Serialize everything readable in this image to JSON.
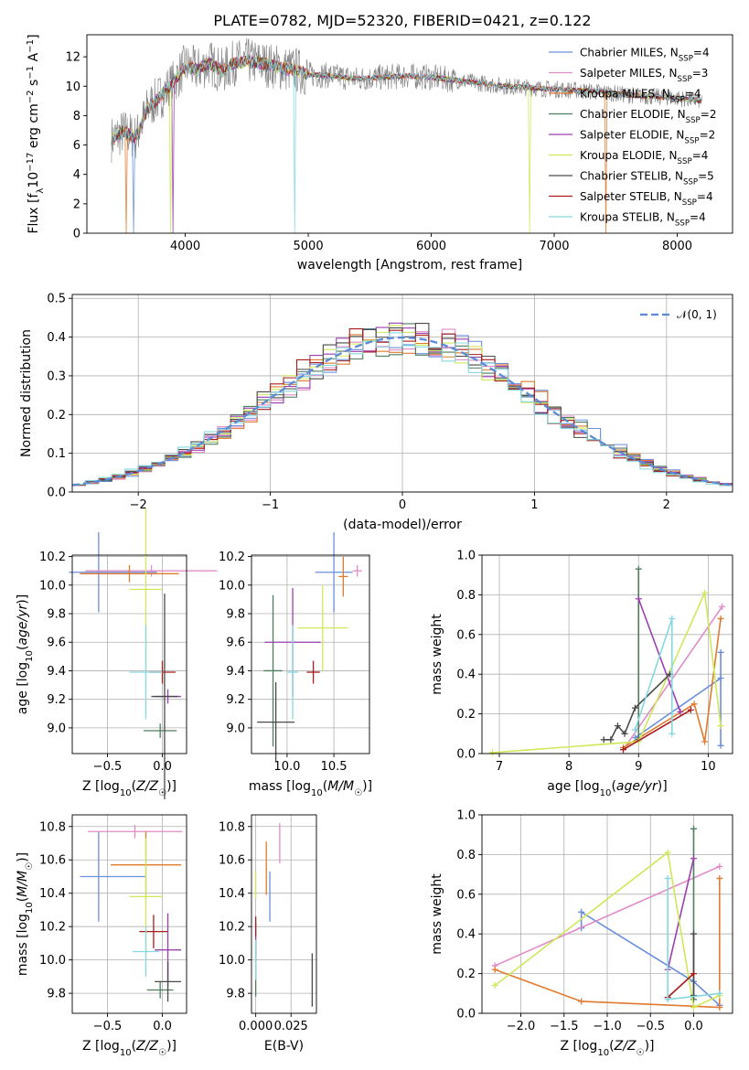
{
  "figure_title": "PLATE=0782, MJD=52320, FIBERID=0421, z=0.122",
  "colors": {
    "cm": "#6a8fdc",
    "sm": "#e08bc8",
    "km": "#e07a2e",
    "ce": "#4e7d5e",
    "se": "#9b3fb0",
    "ke": "#cfe85a",
    "cs": "#4a4a4a",
    "ss": "#a81c1c",
    "ks": "#86d8e0"
  },
  "chart_data": [
    {
      "type": "line",
      "title": "PLATE=0782, MJD=52320, FIBERID=0421, z=0.122",
      "xlabel": "wavelength [Angstrom, rest frame]",
      "ylabel": "Flux [f_λ 10^-17 erg cm^-2 s^-1 A^-1]",
      "xlim": [
        3200,
        8450
      ],
      "ylim": [
        0,
        13.5
      ],
      "xticks": [
        4000,
        5000,
        6000,
        7000,
        8000
      ],
      "yticks": [
        0,
        2,
        4,
        6,
        8,
        10,
        12
      ],
      "grid": false,
      "legend_position": "upper right",
      "data_spectrum": {
        "name": "data",
        "color": "#7f7f7f",
        "x": [
          3400,
          3500,
          3600,
          3700,
          3800,
          3900,
          4000,
          4100,
          4200,
          4300,
          4400,
          4500,
          4600,
          4700,
          4800,
          4900,
          5000,
          5200,
          5400,
          5600,
          5800,
          6000,
          6200,
          6400,
          6600,
          6800,
          7000,
          7200,
          7400,
          7600,
          7800,
          8000,
          8200
        ],
        "y": [
          6.4,
          6.9,
          6.5,
          8.6,
          9.3,
          10.2,
          11.4,
          11.1,
          11.6,
          11.0,
          11.6,
          11.7,
          11.6,
          11.4,
          11.2,
          11.1,
          10.8,
          10.7,
          10.5,
          10.6,
          10.7,
          10.6,
          10.4,
          10.2,
          10.0,
          9.9,
          9.8,
          9.7,
          9.6,
          9.4,
          9.3,
          9.2,
          9.0
        ]
      },
      "models": [
        {
          "name": "Chabrier MILES",
          "n_ssp": "4",
          "color_key": "cm",
          "drop_at": [
            3580
          ]
        },
        {
          "name": "Salpeter MILES",
          "n_ssp": "3",
          "color_key": "sm",
          "drop_at": []
        },
        {
          "name": "Kroupa MILES",
          "n_ssp": "4",
          "color_key": "km",
          "drop_at": [
            3520,
            7420
          ]
        },
        {
          "name": "Chabrier ELODIE",
          "n_ssp": "2",
          "color_key": "ce",
          "drop_at": []
        },
        {
          "name": "Salpeter ELODIE",
          "n_ssp": "2",
          "color_key": "se",
          "drop_at": [
            3900
          ]
        },
        {
          "name": "Kroupa ELODIE",
          "n_ssp": "4",
          "color_key": "ke",
          "drop_at": [
            3880,
            6800
          ]
        },
        {
          "name": "Chabrier STELIB",
          "n_ssp": "5",
          "color_key": "cs",
          "drop_at": []
        },
        {
          "name": "Salpeter STELIB",
          "n_ssp": "4",
          "color_key": "ss",
          "drop_at": []
        },
        {
          "name": "Kroupa STELIB",
          "n_ssp": "4",
          "color_key": "ks",
          "drop_at": [
            4890
          ]
        }
      ]
    },
    {
      "type": "step",
      "xlabel": "(data-model)/error",
      "ylabel": "Normed distribution",
      "xlim": [
        -2.5,
        2.5
      ],
      "ylim": [
        0,
        0.51
      ],
      "xticks": [
        -2,
        -1,
        0,
        1,
        2
      ],
      "yticks": [
        0.0,
        0.1,
        0.2,
        0.3,
        0.4,
        0.5
      ],
      "grid": true,
      "legend_position": "upper right",
      "legend_label": "𝒩(0, 1)",
      "bin_width": 0.1
    },
    {
      "type": "scatter",
      "xlabel": "Z [log10(Z/Z☉)]",
      "ylabel": "age  [log10(age/yr)]",
      "xlim": [
        -0.82,
        0.22
      ],
      "ylim": [
        8.82,
        10.21
      ],
      "xticks": [
        -0.5,
        0.0
      ],
      "yticks": [
        9.0,
        9.2,
        9.4,
        9.6,
        9.8,
        10.0,
        10.2
      ],
      "grid": true,
      "error_bars": [
        {
          "k": "cm",
          "x": -0.45,
          "xe": 0.4,
          "y": 10.09,
          "ye": 0.28,
          "xcap": -0.58
        },
        {
          "k": "sm",
          "x": -0.1,
          "xe": 0.6,
          "y": 10.1,
          "ye": 0.04
        },
        {
          "k": "km",
          "x": -0.3,
          "xe": 0.45,
          "y": 10.08,
          "ye": 0.06
        },
        {
          "k": "ce",
          "x": -0.02,
          "xe": 0.15,
          "y": 8.98,
          "ye": 0.05
        },
        {
          "k": "se",
          "x": 0.05,
          "xe": 0.12,
          "y": 9.22,
          "ye": 0.05
        },
        {
          "k": "ke",
          "x": -0.15,
          "xe": 0.15,
          "y": 9.97,
          "ye": 0.57
        },
        {
          "k": "cs",
          "x": 0.02,
          "xe": 0.12,
          "y": 9.22,
          "ye": 0.72
        },
        {
          "k": "ss",
          "x": 0.0,
          "xe": 0.12,
          "y": 9.39,
          "ye": 0.08
        },
        {
          "k": "ks",
          "x": -0.15,
          "xe": 0.15,
          "y": 9.39,
          "ye": 0.33
        }
      ]
    },
    {
      "type": "scatter",
      "xlabel": "mass [log10(M/M☉)]",
      "ylabel": "",
      "xlim": [
        9.62,
        10.88
      ],
      "ylim": [
        8.82,
        10.21
      ],
      "xticks": [
        10.0,
        10.5
      ],
      "yticks": [
        9.0,
        9.2,
        9.4,
        9.6,
        9.8,
        10.0,
        10.2
      ],
      "grid": true,
      "error_bars": [
        {
          "k": "cm",
          "x": 10.5,
          "xe": 0.2,
          "y": 10.09,
          "ye": 0.28
        },
        {
          "k": "sm",
          "x": 10.75,
          "xe": 0.05,
          "y": 10.1,
          "ye": 0.04
        },
        {
          "k": "km",
          "x": 10.6,
          "xe": 0.05,
          "y": 10.06,
          "ye": 0.14
        },
        {
          "k": "ce",
          "x": 9.85,
          "xe": 0.1,
          "y": 9.4,
          "ye": 0.53
        },
        {
          "k": "se",
          "x": 10.06,
          "xe": 0.3,
          "y": 9.6,
          "ye": 0.38
        },
        {
          "k": "ke",
          "x": 10.38,
          "xe": 0.27,
          "y": 9.7,
          "ye": 0.3
        },
        {
          "k": "cs",
          "x": 9.88,
          "xe": 0.2,
          "y": 9.04,
          "ye": 0.28
        },
        {
          "k": "ss",
          "x": 10.28,
          "xe": 0.07,
          "y": 9.39,
          "ye": 0.08
        },
        {
          "k": "ks",
          "x": 10.06,
          "xe": 0.06,
          "y": 9.39,
          "ye": 0.33
        }
      ]
    },
    {
      "type": "line",
      "xlabel": "age  [log10(age/yr)]",
      "ylabel": "mass weight",
      "xlim": [
        6.75,
        10.35
      ],
      "ylim": [
        0.0,
        1.0
      ],
      "xticks": [
        7,
        8,
        9,
        10
      ],
      "yticks": [
        0.0,
        0.2,
        0.4,
        0.6,
        0.8,
        1.0
      ],
      "grid": true,
      "series": [
        {
          "k": "cm",
          "x": [
            8.95,
            10.18,
            10.18,
            10.18
          ],
          "y": [
            0.08,
            0.38,
            0.51,
            0.04
          ]
        },
        {
          "k": "sm",
          "x": [
            8.78,
            10.2
          ],
          "y": [
            0.02,
            0.74
          ]
        },
        {
          "k": "km",
          "x": [
            8.78,
            9.8,
            9.95,
            10.18
          ],
          "y": [
            0.03,
            0.25,
            0.06,
            0.68
          ]
        },
        {
          "k": "ce",
          "x": [
            9.0,
            9.0
          ],
          "y": [
            0.07,
            0.93
          ]
        },
        {
          "k": "se",
          "x": [
            9.0,
            9.6
          ],
          "y": [
            0.78,
            0.21
          ]
        },
        {
          "k": "ke",
          "x": [
            6.9,
            9.0,
            9.95,
            10.18
          ],
          "y": [
            0.005,
            0.06,
            0.81,
            0.14
          ]
        },
        {
          "k": "cs",
          "x": [
            8.5,
            8.6,
            8.7,
            8.8,
            8.95,
            9.45
          ],
          "y": [
            0.07,
            0.07,
            0.14,
            0.1,
            0.23,
            0.4
          ]
        },
        {
          "k": "ss",
          "x": [
            8.78,
            9.75
          ],
          "y": [
            0.02,
            0.22
          ]
        },
        {
          "k": "ks",
          "x": [
            8.95,
            9.48,
            9.48
          ],
          "y": [
            0.12,
            0.68,
            0.1
          ]
        }
      ]
    },
    {
      "type": "scatter",
      "xlabel": "Z [log10(Z/Z☉)]",
      "ylabel": "mass [log10(M/M☉)]",
      "xlim": [
        -0.82,
        0.22
      ],
      "ylim": [
        9.68,
        10.87
      ],
      "xticks": [
        -0.5,
        0.0
      ],
      "yticks": [
        9.8,
        10.0,
        10.2,
        10.4,
        10.6,
        10.8
      ],
      "grid": true,
      "error_bars": [
        {
          "k": "cm",
          "x": -0.45,
          "xe": 0.3,
          "y": 10.5,
          "ye": 0.27,
          "xcap": -0.58
        },
        {
          "k": "sm",
          "x": -0.25,
          "xe": 0.43,
          "y": 10.77,
          "ye": 0.04
        },
        {
          "k": "km",
          "x": -0.15,
          "xe": 0.32,
          "y": 10.57,
          "ye": 0.2
        },
        {
          "k": "ce",
          "x": -0.02,
          "xe": 0.12,
          "y": 9.82,
          "ye": 0.05
        },
        {
          "k": "se",
          "x": 0.05,
          "xe": 0.12,
          "y": 10.06,
          "ye": 0.22
        },
        {
          "k": "ke",
          "x": -0.15,
          "xe": 0.15,
          "y": 10.38,
          "ye": 0.35
        },
        {
          "k": "cs",
          "x": 0.05,
          "xe": 0.12,
          "y": 9.87,
          "ye": 0.12
        },
        {
          "k": "ss",
          "x": -0.08,
          "xe": 0.13,
          "y": 10.17,
          "ye": 0.1
        },
        {
          "k": "ks",
          "x": -0.15,
          "xe": 0.12,
          "y": 10.05,
          "ye": 0.15
        }
      ]
    },
    {
      "type": "scatter",
      "xlabel": "E(B-V)",
      "ylabel": "",
      "xlim": [
        -0.003,
        0.043
      ],
      "ylim": [
        9.68,
        10.87
      ],
      "xticks": [
        0.0,
        0.025
      ],
      "xticklabels": [
        "0.000",
        "0.025"
      ],
      "yticks": [
        9.8,
        10.0,
        10.2,
        10.4,
        10.6,
        10.8
      ],
      "grid": true,
      "error_bars": [
        {
          "k": "cm",
          "x": 0.01,
          "xe": 0,
          "y": 10.38,
          "ye": 0.15
        },
        {
          "k": "sm",
          "x": 0.017,
          "xe": 0,
          "y": 10.7,
          "ye": 0.12
        },
        {
          "k": "km",
          "x": 0.0075,
          "xe": 0,
          "y": 10.55,
          "ye": 0.16
        },
        {
          "k": "ce",
          "x": 0.0,
          "xe": 0,
          "y": 9.95,
          "ye": 0.17
        },
        {
          "k": "se",
          "x": 0.0,
          "xe": 0,
          "y": 10.12,
          "ye": 0.1
        },
        {
          "k": "ke",
          "x": 0.0,
          "xe": 0,
          "y": 10.45,
          "ye": 0.08
        },
        {
          "k": "cs",
          "x": 0.04,
          "xe": 0,
          "y": 9.88,
          "ye": 0.16
        },
        {
          "k": "ss",
          "x": 0.0,
          "xe": 0,
          "y": 10.2,
          "ye": 0.06
        },
        {
          "k": "ks",
          "x": 0.0,
          "xe": 0,
          "y": 10.0,
          "ye": 0.12
        }
      ]
    },
    {
      "type": "line",
      "xlabel": "Z [log10(Z/Z☉)]",
      "ylabel": "mass weight",
      "xlim": [
        -2.45,
        0.45
      ],
      "ylim": [
        0.0,
        1.0
      ],
      "xticks": [
        -2.0,
        -1.5,
        -1.0,
        -0.5,
        0.0
      ],
      "yticks": [
        0.0,
        0.2,
        0.4,
        0.6,
        0.8,
        1.0
      ],
      "grid": true,
      "series": [
        {
          "k": "cm",
          "x": [
            -1.3,
            -1.3,
            0.0,
            0.3
          ],
          "y": [
            0.43,
            0.51,
            0.16,
            0.04
          ]
        },
        {
          "k": "sm",
          "x": [
            -2.3,
            0.3
          ],
          "y": [
            0.24,
            0.74
          ]
        },
        {
          "k": "km",
          "x": [
            -2.3,
            -1.3,
            0.3,
            0.3
          ],
          "y": [
            0.22,
            0.06,
            0.03,
            0.68
          ]
        },
        {
          "k": "ce",
          "x": [
            0.0,
            0.0
          ],
          "y": [
            0.07,
            0.93
          ]
        },
        {
          "k": "se",
          "x": [
            -0.3,
            0.0
          ],
          "y": [
            0.22,
            0.78
          ]
        },
        {
          "k": "ke",
          "x": [
            -2.3,
            -0.3,
            0.0,
            0.3
          ],
          "y": [
            0.14,
            0.81,
            0.03,
            0.09
          ]
        },
        {
          "k": "cs",
          "x": [
            0.0,
            0.0
          ],
          "y": [
            0.09,
            0.4
          ]
        },
        {
          "k": "ss",
          "x": [
            -0.3,
            0.0
          ],
          "y": [
            0.08,
            0.2
          ]
        },
        {
          "k": "ks",
          "x": [
            -0.3,
            -0.3,
            0.3
          ],
          "y": [
            0.68,
            0.07,
            0.1
          ]
        }
      ]
    }
  ]
}
